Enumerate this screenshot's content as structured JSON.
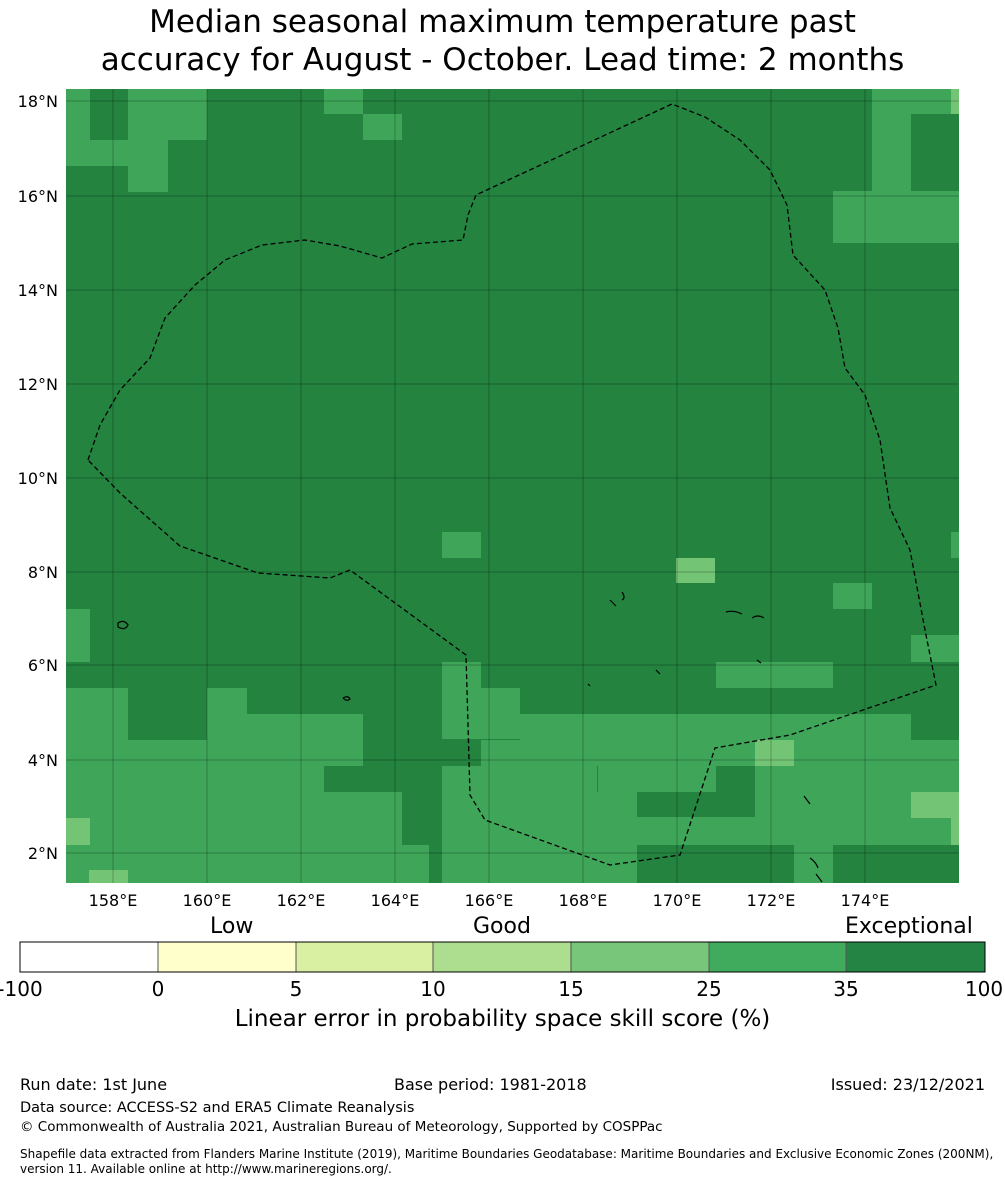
{
  "title_line1": "Median seasonal maximum temperature past",
  "title_line2": "accuracy for August - October. Lead time: 2 months",
  "map": {
    "lon_ticks": [
      "158°E",
      "160°E",
      "162°E",
      "164°E",
      "166°E",
      "168°E",
      "170°E",
      "172°E",
      "174°E"
    ],
    "lat_ticks": [
      "18°N",
      "16°N",
      "14°N",
      "12°N",
      "10°N",
      "8°N",
      "6°N",
      "4°N",
      "2°N"
    ],
    "category_colors": {
      "exceptional": "#23833f",
      "very_good": "#3ea559",
      "good": "#74c476",
      "fair": "#a9dc8e"
    }
  },
  "colorbar": {
    "category_labels": [
      "Low",
      "Good",
      "Exceptional"
    ],
    "tick_labels": [
      "-100",
      "0",
      "5",
      "10",
      "15",
      "25",
      "35",
      "100"
    ],
    "colors": [
      "#ffffff",
      "#ffffcc",
      "#d9f0a3",
      "#addd8e",
      "#78c679",
      "#41ab5d",
      "#238443"
    ],
    "title": "Linear error in probability space skill score (%)"
  },
  "footer": {
    "run_date": "Run date: 1st June",
    "base_period": "Base period: 1981-2018",
    "issued": "Issued: 23/12/2021",
    "data_source": "Data source: ACCESS-S2 and ERA5 Climate Reanalysis",
    "copyright": "© Commonwealth of Australia 2021, Australian Bureau of Meteorology, Supported by COSPPac",
    "shapefile_line1": "Shapefile data extracted from Flanders Marine Institute (2019), Maritime Boundaries Geodatabase: Maritime Boundaries and Exclusive Economic Zones (200NM),",
    "shapefile_line2": "version 11. Available online at http://www.marineregions.org/."
  }
}
